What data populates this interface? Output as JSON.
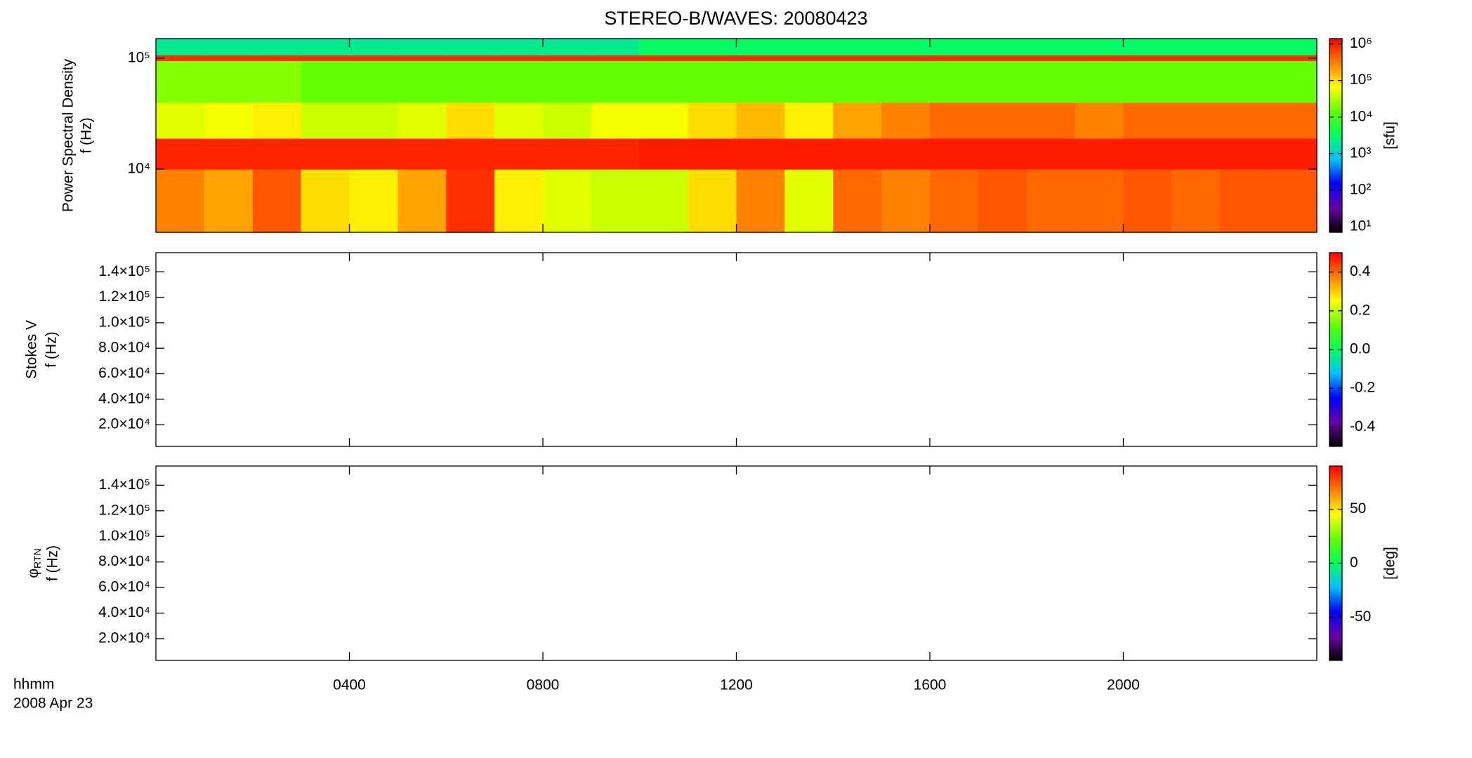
{
  "chart_data": [
    {
      "type": "heatmap",
      "title": "STEREO-B/WAVES: 20080423",
      "ylabel": [
        "Power Spectral Density",
        "f (Hz)"
      ],
      "ylog": true,
      "ylim": [
        2700,
        150000
      ],
      "yticks": [
        {
          "value": 10000,
          "label": "10⁴"
        },
        {
          "value": 100000,
          "label": "10⁵"
        }
      ],
      "xlim": [
        0,
        24
      ],
      "xticks": [
        4,
        8,
        12,
        16,
        20
      ],
      "x_edges": [
        0,
        1,
        2,
        3,
        4,
        5,
        6,
        7,
        8,
        9,
        10,
        11,
        12,
        13,
        14,
        15,
        16,
        17,
        18,
        19,
        20,
        21,
        22,
        23,
        24
      ],
      "y_edges": [
        2700,
        10000,
        19000,
        40000,
        95000,
        107000,
        150000
      ],
      "z": [
        [
          300000,
          200000,
          500000,
          100000,
          80000,
          200000,
          800000,
          80000,
          50000,
          40000,
          40000,
          100000,
          300000,
          50000,
          400000,
          300000,
          400000,
          500000,
          400000,
          400000,
          500000,
          400000,
          500000,
          500000
        ],
        [
          900000,
          900000,
          900000,
          900000,
          900000,
          900000,
          900000,
          900000,
          900000,
          900000,
          1000000,
          1000000,
          1000000,
          1000000,
          1000000,
          1000000,
          1000000,
          1000000,
          1000000,
          1000000,
          1000000,
          1000000,
          1000000,
          1000000
        ],
        [
          50000,
          60000,
          80000,
          40000,
          40000,
          50000,
          100000,
          50000,
          40000,
          60000,
          60000,
          100000,
          150000,
          80000,
          200000,
          300000,
          400000,
          400000,
          400000,
          300000,
          400000,
          400000,
          400000,
          400000
        ],
        [
          20000,
          20000,
          20000,
          15000,
          15000,
          15000,
          15000,
          15000,
          15000,
          15000,
          15000,
          15000,
          15000,
          15000,
          15000,
          15000,
          15000,
          15000,
          15000,
          15000,
          15000,
          15000,
          15000,
          15000
        ],
        [
          800000,
          800000,
          800000,
          800000,
          800000,
          800000,
          800000,
          800000,
          800000,
          800000,
          800000,
          800000,
          800000,
          800000,
          800000,
          800000,
          800000,
          800000,
          800000,
          800000,
          800000,
          800000,
          800000,
          800000
        ],
        [
          2000,
          2000,
          2000,
          2000,
          2000,
          2000,
          2000,
          2000,
          2000,
          2000,
          3000,
          3000,
          3000,
          3000,
          3000,
          3000,
          3000,
          3000,
          3000,
          3000,
          3000,
          3000,
          3000,
          3000
        ]
      ],
      "colormap": [
        "#000000",
        "#6a00a8",
        "#0000ff",
        "#00c0ff",
        "#00ff60",
        "#60ff00",
        "#ffff00",
        "#ff8000",
        "#ff0000"
      ],
      "colorbar": {
        "label": "[sfu]",
        "log": true,
        "clim": [
          7,
          1400000
        ],
        "ticks": [
          {
            "value": 10,
            "label": "10¹"
          },
          {
            "value": 100,
            "label": "10²"
          },
          {
            "value": 1000,
            "label": "10³"
          },
          {
            "value": 10000,
            "label": "10⁴"
          },
          {
            "value": 100000,
            "label": "10⁵"
          },
          {
            "value": 1000000,
            "label": "10⁶"
          }
        ]
      }
    },
    {
      "type": "heatmap",
      "ylabel": [
        "Stokes V",
        "f (Hz)"
      ],
      "ylim": [
        3000,
        155000
      ],
      "yticks": [
        {
          "value": 20000,
          "label": "2.0×10⁴"
        },
        {
          "value": 40000,
          "label": "4.0×10⁴"
        },
        {
          "value": 60000,
          "label": "6.0×10⁴"
        },
        {
          "value": 80000,
          "label": "8.0×10⁴"
        },
        {
          "value": 100000,
          "label": "1.0×10⁵"
        },
        {
          "value": 120000,
          "label": "1.2×10⁵"
        },
        {
          "value": 140000,
          "label": "1.4×10⁵"
        }
      ],
      "xlim": [
        0,
        24
      ],
      "xticks": [
        4,
        8,
        12,
        16,
        20
      ],
      "colormap": [
        "#000000",
        "#6a00a8",
        "#0000ff",
        "#00c0ff",
        "#00ff60",
        "#60ff00",
        "#ffff00",
        "#ff8000",
        "#ff0000"
      ],
      "colorbar": {
        "clim": [
          -0.5,
          0.5
        ],
        "ticks": [
          -0.4,
          -0.2,
          {
            "value": 0,
            "label": "0.0"
          },
          0.2,
          0.4
        ]
      }
    },
    {
      "type": "heatmap",
      "ylabel": [
        {
          "symbol": "φ",
          "subscript": "RTN"
        },
        "f (Hz)"
      ],
      "ylim": [
        3000,
        155000
      ],
      "yticks": [
        {
          "value": 20000,
          "label": "2.0×10⁴"
        },
        {
          "value": 40000,
          "label": "4.0×10⁴"
        },
        {
          "value": 60000,
          "label": "6.0×10⁴"
        },
        {
          "value": 80000,
          "label": "8.0×10⁴"
        },
        {
          "value": 100000,
          "label": "1.0×10⁵"
        },
        {
          "value": 120000,
          "label": "1.2×10⁵"
        },
        {
          "value": 140000,
          "label": "1.4×10⁵"
        }
      ],
      "xlim": [
        0,
        24
      ],
      "xticks": [
        {
          "value": 4,
          "label": "0400"
        },
        {
          "value": 8,
          "label": "0800"
        },
        {
          "value": 12,
          "label": "1200"
        },
        {
          "value": 16,
          "label": "1600"
        },
        {
          "value": 20,
          "label": "2000"
        }
      ],
      "xlabel": "hhmm",
      "date": "2008 Apr 23",
      "colormap": [
        "#000000",
        "#6a00a8",
        "#0000ff",
        "#00c0ff",
        "#00ff60",
        "#60ff00",
        "#ffff00",
        "#ff8000",
        "#ff0000"
      ],
      "colorbar": {
        "label": "[deg]",
        "clim": [
          -90,
          90
        ],
        "ticks": [
          -50,
          0,
          50
        ]
      }
    }
  ]
}
